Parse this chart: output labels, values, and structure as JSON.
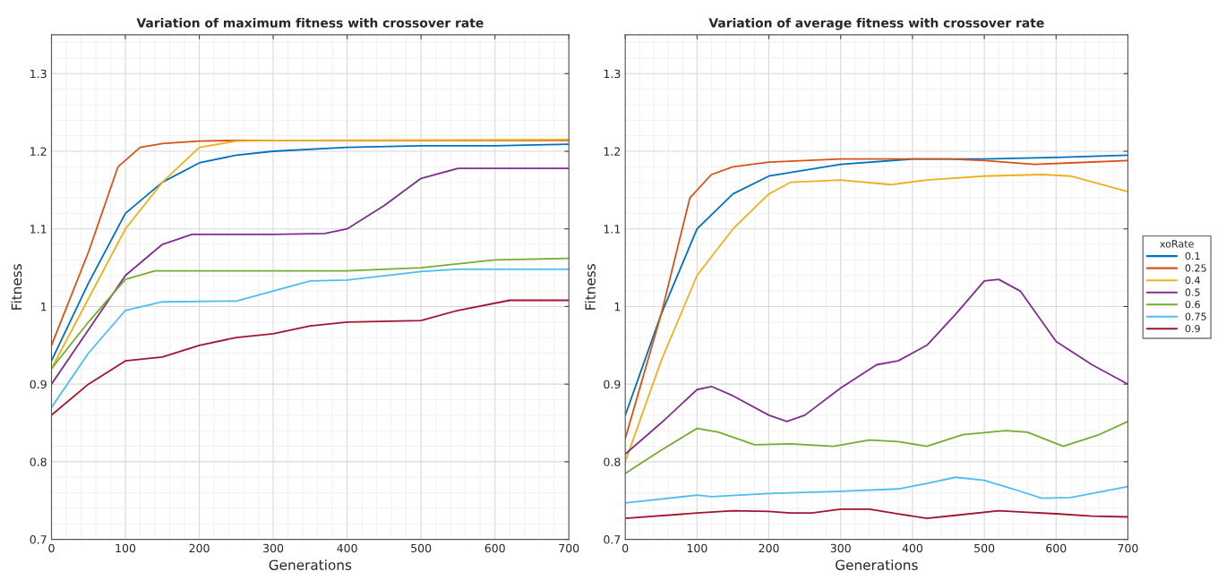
{
  "chart_data": [
    {
      "type": "line",
      "title": "Variation of maximum fitness with crossover rate",
      "xlabel": "Generations",
      "ylabel": "Fitness",
      "xlim": [
        0,
        700
      ],
      "ylim": [
        0.7,
        1.35
      ],
      "xticks": [
        0,
        100,
        200,
        300,
        400,
        500,
        600,
        700
      ],
      "yticks": [
        0.7,
        0.8,
        0.9,
        1,
        1.1,
        1.2,
        1.3
      ],
      "grid": true,
      "legend": false,
      "series": [
        {
          "color": "#0072bd",
          "x": [
            0,
            50,
            100,
            150,
            200,
            250,
            300,
            400,
            500,
            600,
            700
          ],
          "values": [
            0.93,
            1.03,
            1.12,
            1.16,
            1.185,
            1.195,
            1.2,
            1.205,
            1.207,
            1.207,
            1.209
          ]
        },
        {
          "color": "#d95319",
          "x": [
            0,
            50,
            90,
            120,
            150,
            200,
            250,
            700
          ],
          "values": [
            0.95,
            1.07,
            1.18,
            1.205,
            1.21,
            1.213,
            1.214,
            1.214
          ]
        },
        {
          "color": "#edb120",
          "x": [
            0,
            50,
            100,
            150,
            200,
            250,
            300,
            700
          ],
          "values": [
            0.92,
            1.01,
            1.1,
            1.16,
            1.205,
            1.213,
            1.214,
            1.215
          ]
        },
        {
          "color": "#7e2f8e",
          "x": [
            0,
            50,
            100,
            150,
            190,
            300,
            370,
            400,
            450,
            500,
            550,
            700
          ],
          "values": [
            0.9,
            0.97,
            1.04,
            1.08,
            1.093,
            1.093,
            1.094,
            1.1,
            1.13,
            1.165,
            1.178,
            1.178
          ]
        },
        {
          "color": "#77ac30",
          "x": [
            0,
            50,
            100,
            140,
            200,
            400,
            500,
            600,
            700
          ],
          "values": [
            0.92,
            0.98,
            1.035,
            1.046,
            1.046,
            1.046,
            1.05,
            1.06,
            1.062
          ]
        },
        {
          "color": "#4dbeee",
          "x": [
            0,
            50,
            100,
            150,
            250,
            300,
            350,
            400,
            500,
            550,
            700
          ],
          "values": [
            0.87,
            0.94,
            0.995,
            1.006,
            1.007,
            1.02,
            1.033,
            1.034,
            1.045,
            1.048,
            1.048
          ]
        },
        {
          "color": "#a2142f",
          "x": [
            0,
            50,
            100,
            150,
            200,
            250,
            300,
            350,
            400,
            500,
            550,
            620,
            700
          ],
          "values": [
            0.86,
            0.9,
            0.93,
            0.935,
            0.95,
            0.96,
            0.965,
            0.975,
            0.98,
            0.982,
            0.995,
            1.008,
            1.008
          ]
        }
      ]
    },
    {
      "type": "line",
      "title": "Variation of average fitness with crossover rate",
      "xlabel": "Generations",
      "ylabel": "Fitness",
      "xlim": [
        0,
        700
      ],
      "ylim": [
        0.7,
        1.35
      ],
      "xticks": [
        0,
        100,
        200,
        300,
        400,
        500,
        600,
        700
      ],
      "yticks": [
        0.7,
        0.8,
        0.9,
        1,
        1.1,
        1.2,
        1.3
      ],
      "grid": true,
      "legend": "right",
      "legend_title": "xoRate",
      "series": [
        {
          "name": "0.1",
          "color": "#0072bd",
          "x": [
            0,
            50,
            100,
            150,
            200,
            300,
            400,
            500,
            600,
            700
          ],
          "values": [
            0.86,
            0.99,
            1.1,
            1.145,
            1.168,
            1.183,
            1.19,
            1.19,
            1.192,
            1.195
          ]
        },
        {
          "name": "0.25",
          "color": "#d95319",
          "x": [
            0,
            50,
            90,
            120,
            150,
            200,
            300,
            400,
            450,
            500,
            570,
            620,
            700
          ],
          "values": [
            0.83,
            0.99,
            1.14,
            1.17,
            1.18,
            1.186,
            1.19,
            1.19,
            1.19,
            1.188,
            1.183,
            1.185,
            1.188
          ]
        },
        {
          "name": "0.4",
          "color": "#edb120",
          "x": [
            0,
            50,
            100,
            150,
            200,
            230,
            300,
            370,
            420,
            500,
            580,
            620,
            700
          ],
          "values": [
            0.8,
            0.93,
            1.04,
            1.1,
            1.145,
            1.16,
            1.163,
            1.157,
            1.163,
            1.168,
            1.17,
            1.168,
            1.148
          ]
        },
        {
          "name": "0.5",
          "color": "#7e2f8e",
          "x": [
            0,
            50,
            100,
            120,
            150,
            200,
            225,
            250,
            300,
            350,
            380,
            420,
            460,
            500,
            520,
            550,
            600,
            650,
            700
          ],
          "values": [
            0.81,
            0.85,
            0.893,
            0.897,
            0.885,
            0.86,
            0.852,
            0.86,
            0.895,
            0.925,
            0.93,
            0.95,
            0.99,
            1.033,
            1.035,
            1.02,
            0.955,
            0.925,
            0.9
          ]
        },
        {
          "name": "0.6",
          "color": "#77ac30",
          "x": [
            0,
            50,
            100,
            130,
            180,
            230,
            290,
            340,
            380,
            420,
            470,
            530,
            560,
            610,
            660,
            700
          ],
          "values": [
            0.785,
            0.815,
            0.843,
            0.838,
            0.822,
            0.823,
            0.82,
            0.828,
            0.826,
            0.82,
            0.835,
            0.84,
            0.838,
            0.82,
            0.835,
            0.852
          ]
        },
        {
          "name": "0.75",
          "color": "#4dbeee",
          "x": [
            0,
            100,
            120,
            200,
            300,
            380,
            420,
            460,
            500,
            540,
            580,
            620,
            700
          ],
          "values": [
            0.747,
            0.757,
            0.755,
            0.759,
            0.762,
            0.765,
            0.772,
            0.78,
            0.776,
            0.765,
            0.753,
            0.754,
            0.768
          ]
        },
        {
          "name": "0.9",
          "color": "#a2142f",
          "x": [
            0,
            100,
            150,
            200,
            230,
            260,
            300,
            340,
            380,
            420,
            460,
            520,
            560,
            600,
            650,
            700
          ],
          "values": [
            0.727,
            0.734,
            0.737,
            0.736,
            0.734,
            0.734,
            0.739,
            0.739,
            0.733,
            0.727,
            0.731,
            0.737,
            0.735,
            0.733,
            0.73,
            0.729
          ]
        }
      ]
    }
  ]
}
